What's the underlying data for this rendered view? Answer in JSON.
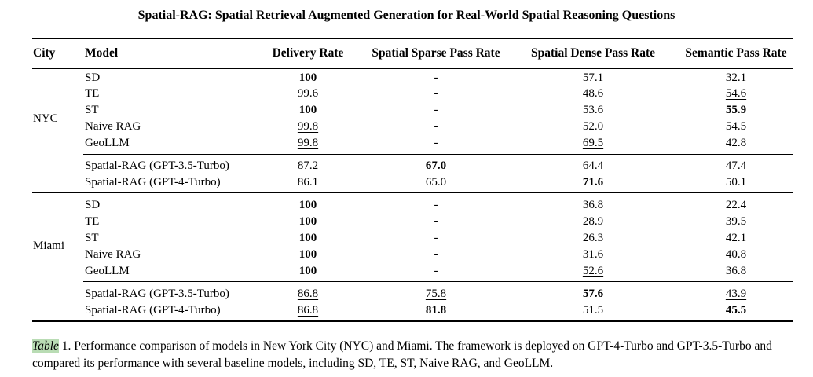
{
  "title": "Spatial-RAG: Spatial Retrieval Augmented Generation for Real-World Spatial Reasoning Questions",
  "columns": [
    "City",
    "Model",
    "Delivery Rate",
    "Spatial Sparse Pass Rate",
    "Spatial Dense Pass Rate",
    "Semantic Pass Rate"
  ],
  "groups": [
    {
      "city": "NYC",
      "rows": [
        {
          "model": "SD",
          "delivery": "100",
          "delivery_style": "bold",
          "sparse": "-",
          "sparse_style": "",
          "dense": "57.1",
          "dense_style": "",
          "semantic": "32.1",
          "semantic_style": ""
        },
        {
          "model": "TE",
          "delivery": "99.6",
          "delivery_style": "",
          "sparse": "-",
          "sparse_style": "",
          "dense": "48.6",
          "dense_style": "",
          "semantic": "54.6",
          "semantic_style": "underline"
        },
        {
          "model": "ST",
          "delivery": "100",
          "delivery_style": "bold",
          "sparse": "-",
          "sparse_style": "",
          "dense": "53.6",
          "dense_style": "",
          "semantic": "55.9",
          "semantic_style": "bold"
        },
        {
          "model": "Naive RAG",
          "delivery": "99.8",
          "delivery_style": "underline",
          "sparse": "-",
          "sparse_style": "",
          "dense": "52.0",
          "dense_style": "",
          "semantic": "54.5",
          "semantic_style": ""
        },
        {
          "model": "GeoLLM",
          "delivery": "99.8",
          "delivery_style": "underline",
          "sparse": "-",
          "sparse_style": "",
          "dense": "69.5",
          "dense_style": "underline",
          "semantic": "42.8",
          "semantic_style": ""
        },
        {
          "model": "Spatial-RAG (GPT-3.5-Turbo)",
          "delivery": "87.2",
          "delivery_style": "",
          "sparse": "67.0",
          "sparse_style": "bold",
          "dense": "64.4",
          "dense_style": "",
          "semantic": "47.4",
          "semantic_style": ""
        },
        {
          "model": "Spatial-RAG (GPT-4-Turbo)",
          "delivery": "86.1",
          "delivery_style": "",
          "sparse": "65.0",
          "sparse_style": "underline",
          "dense": "71.6",
          "dense_style": "bold",
          "semantic": "50.1",
          "semantic_style": ""
        }
      ]
    },
    {
      "city": "Miami",
      "rows": [
        {
          "model": "SD",
          "delivery": "100",
          "delivery_style": "bold",
          "sparse": "-",
          "sparse_style": "",
          "dense": "36.8",
          "dense_style": "",
          "semantic": "22.4",
          "semantic_style": ""
        },
        {
          "model": "TE",
          "delivery": "100",
          "delivery_style": "bold",
          "sparse": "-",
          "sparse_style": "",
          "dense": "28.9",
          "dense_style": "",
          "semantic": "39.5",
          "semantic_style": ""
        },
        {
          "model": "ST",
          "delivery": "100",
          "delivery_style": "bold",
          "sparse": "-",
          "sparse_style": "",
          "dense": "26.3",
          "dense_style": "",
          "semantic": "42.1",
          "semantic_style": ""
        },
        {
          "model": "Naive RAG",
          "delivery": "100",
          "delivery_style": "bold",
          "sparse": "-",
          "sparse_style": "",
          "dense": "31.6",
          "dense_style": "",
          "semantic": "40.8",
          "semantic_style": ""
        },
        {
          "model": "GeoLLM",
          "delivery": "100",
          "delivery_style": "bold",
          "sparse": "-",
          "sparse_style": "",
          "dense": "52.6",
          "dense_style": "underline",
          "semantic": "36.8",
          "semantic_style": ""
        },
        {
          "model": "Spatial-RAG (GPT-3.5-Turbo)",
          "delivery": "86.8",
          "delivery_style": "underline",
          "sparse": "75.8",
          "sparse_style": "underline",
          "dense": "57.6",
          "dense_style": "bold",
          "semantic": "43.9",
          "semantic_style": "underline"
        },
        {
          "model": "Spatial-RAG (GPT-4-Turbo)",
          "delivery": "86.8",
          "delivery_style": "underline",
          "sparse": "81.8",
          "sparse_style": "bold",
          "dense": "51.5",
          "dense_style": "",
          "semantic": "45.5",
          "semantic_style": "bold"
        }
      ]
    }
  ],
  "caption": {
    "label": "Table",
    "number": " 1.",
    "text": " Performance comparison of models in New York City (NYC) and Miami. The framework is deployed on GPT-4-Turbo and GPT-3.5-Turbo and compared its performance with several baseline models, including SD, TE, ST, Naive RAG, and GeoLLM.",
    "highlight_color": "#b9dcb4"
  }
}
